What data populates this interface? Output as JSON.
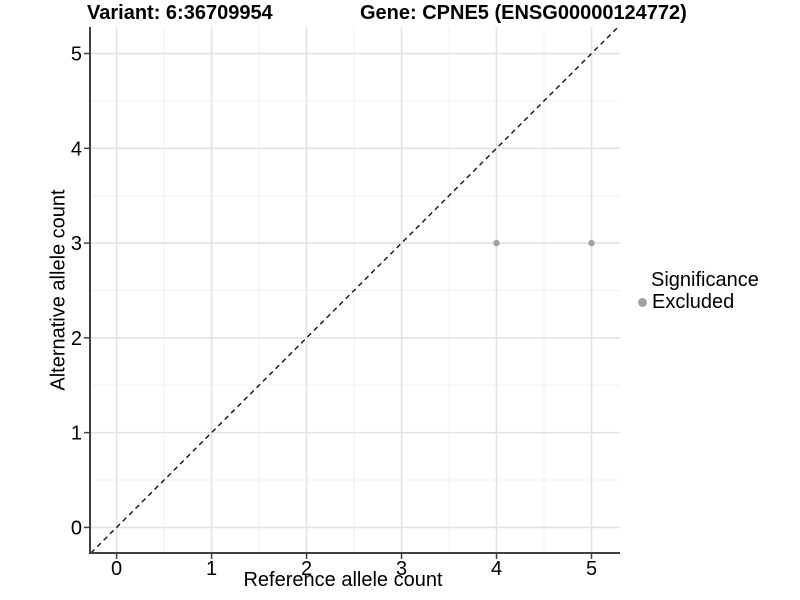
{
  "chart_data": {
    "type": "scatter",
    "title_left": "Variant: 6:36709954",
    "title_right": "Gene: CPNE5 (ENSG00000124772)",
    "xlabel": "Reference allele count",
    "ylabel": "Alternative allele count",
    "xlim": [
      -0.28,
      5.3
    ],
    "ylim": [
      -0.27,
      5.28
    ],
    "x_ticks": [
      0,
      1,
      2,
      3,
      4,
      5
    ],
    "y_ticks": [
      0,
      1,
      2,
      3,
      4,
      5
    ],
    "grid": {
      "major_color": "#e3e3e3",
      "minor_color": "#f0f0f0",
      "minor_offsets": [
        0.5,
        1.5,
        2.5,
        3.5,
        4.5
      ]
    },
    "axis": {
      "line_color": "#404040",
      "tick_color": "#404040",
      "tick_length": 5
    },
    "identity_line": {
      "style": "dashed",
      "color": "#111111",
      "dash": "5 4"
    },
    "series": [
      {
        "name": "Excluded",
        "color": "#a2a2a2",
        "point_radius": 3.2,
        "points": [
          [
            4,
            3
          ],
          [
            5,
            3
          ]
        ]
      }
    ],
    "legend": {
      "title": "Significance",
      "position": "right",
      "items": [
        {
          "label": "Excluded",
          "color": "#a2a2a2"
        }
      ]
    }
  }
}
